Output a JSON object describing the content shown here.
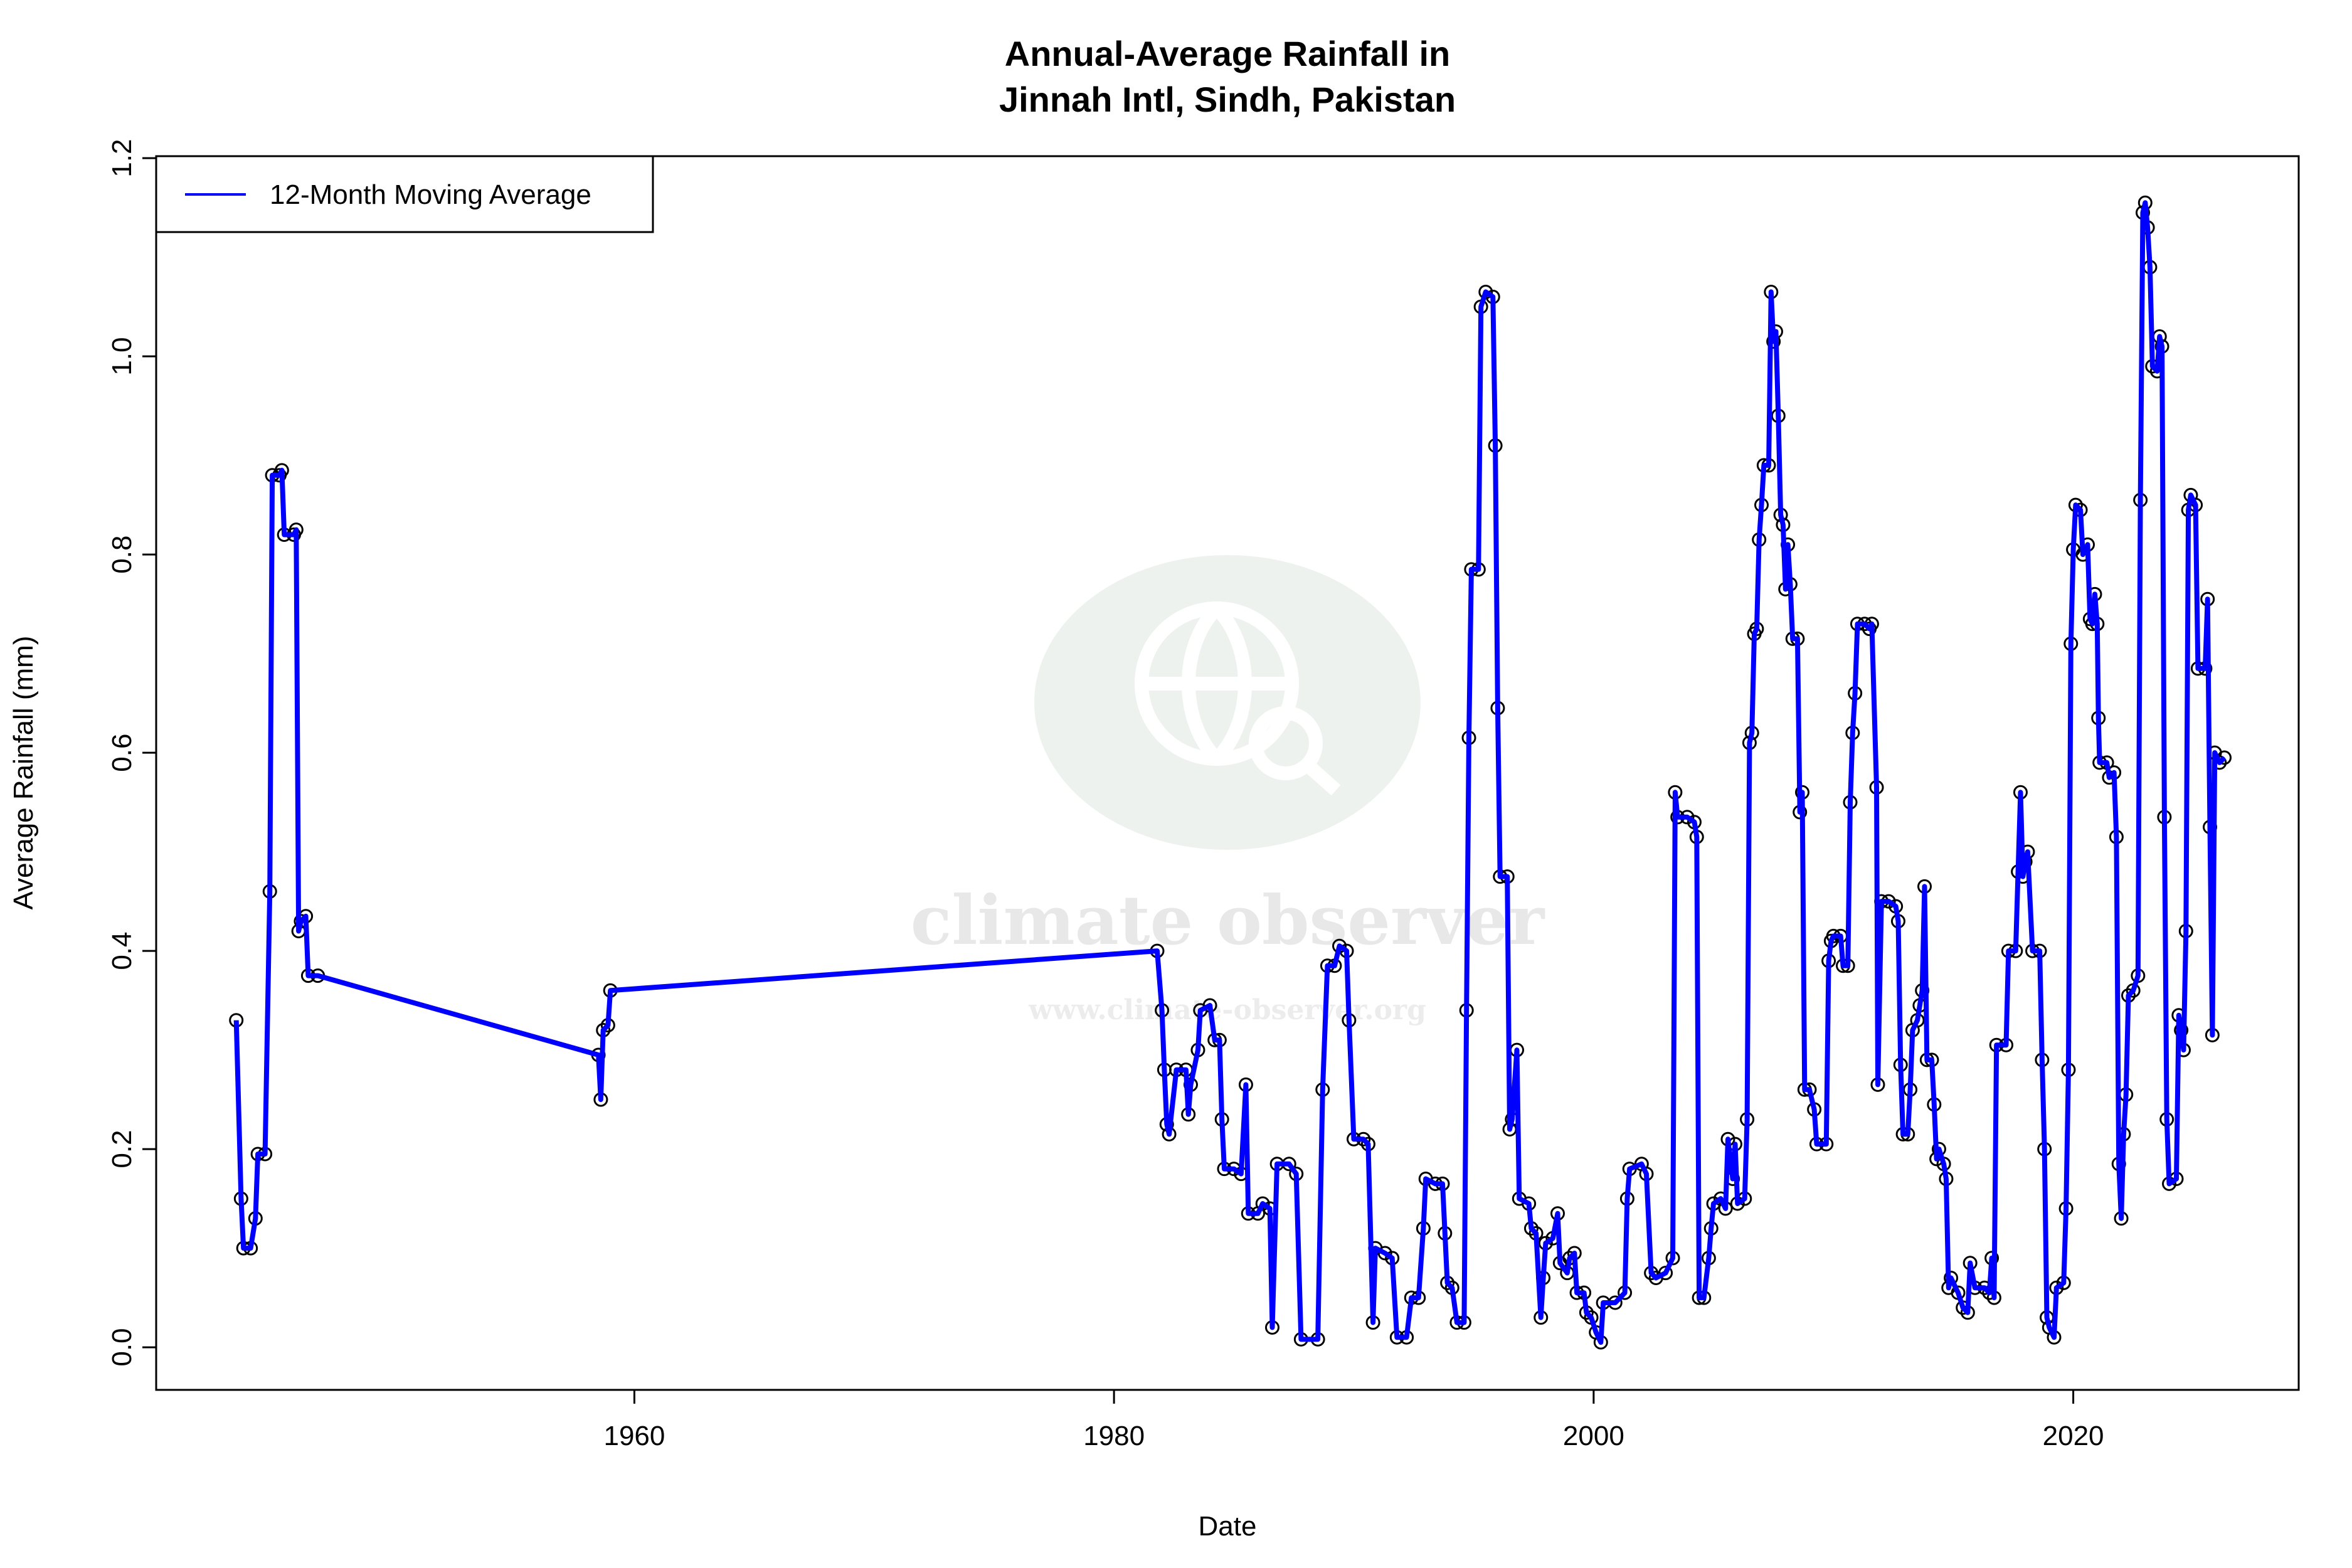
{
  "chart_data": {
    "type": "line",
    "title_line1": "Annual-Average Rainfall in",
    "title_line2": "Jinnah Intl, Sindh, Pakistan",
    "xlabel": "Date",
    "ylabel": "Average Rainfall (mm)",
    "xlim": [
      1940.06,
      2029.4
    ],
    "ylim": [
      -0.043,
      1.202
    ],
    "x_ticks": [
      1960,
      1980,
      2000,
      2020
    ],
    "x_tick_labels": [
      "1960",
      "1980",
      "2000",
      "2020"
    ],
    "y_ticks": [
      0,
      0.2,
      0.4,
      0.6,
      0.8,
      1.0,
      1.2
    ],
    "y_tick_labels": [
      "0.0",
      "0.2",
      "0.4",
      "0.6",
      "0.8",
      "1.0",
      "1.2"
    ],
    "grid": false,
    "legend": {
      "placement": "top-left",
      "entries": [
        "12-Month Moving Average"
      ]
    },
    "colors": {
      "line": "#0000ff",
      "points": "#000000",
      "watermark": "#eef2ee"
    },
    "watermark": {
      "name": "climate observer",
      "url": "www.climate-observer.org"
    },
    "series": [
      {
        "name": "12-Month Moving Average",
        "x": [
          1943.4,
          1943.6,
          1943.7,
          1944.0,
          1944.2,
          1944.3,
          1944.6,
          1944.8,
          1944.9,
          1945.2,
          1945.3,
          1945.4,
          1945.8,
          1945.9,
          1946.0,
          1946.1,
          1946.3,
          1946.4,
          1946.8,
          1958.5,
          1958.6,
          1958.7,
          1958.9,
          1959.0,
          1981.8,
          1982.0,
          1982.1,
          1982.2,
          1982.3,
          1982.6,
          1983.0,
          1983.1,
          1983.2,
          1983.5,
          1983.6,
          1984.0,
          1984.2,
          1984.4,
          1984.5,
          1984.6,
          1985.0,
          1985.3,
          1985.5,
          1985.6,
          1986.0,
          1986.2,
          1986.5,
          1986.6,
          1986.8,
          1987.3,
          1987.6,
          1987.8,
          1988.5,
          1988.7,
          1988.9,
          1989.2,
          1989.4,
          1989.7,
          1989.8,
          1990.0,
          1990.4,
          1990.6,
          1990.8,
          1990.9,
          1991.3,
          1991.6,
          1991.8,
          1992.2,
          1992.4,
          1992.7,
          1992.9,
          1993.0,
          1993.4,
          1993.7,
          1993.8,
          1993.9,
          1994.1,
          1994.3,
          1994.6,
          1994.7,
          1994.8,
          1994.9,
          1995.2,
          1995.3,
          1995.5,
          1995.8,
          1995.9,
          1996.0,
          1996.1,
          1996.4,
          1996.5,
          1996.6,
          1996.8,
          1996.9,
          1997.3,
          1997.4,
          1997.6,
          1997.8,
          1997.9,
          1998.0,
          1998.3,
          1998.5,
          1998.6,
          1998.9,
          1999.0,
          1999.2,
          1999.3,
          1999.6,
          1999.7,
          1999.9,
          2000.1,
          2000.3,
          2000.4,
          2000.9,
          2001.3,
          2001.4,
          2001.5,
          2002.0,
          2002.2,
          2002.4,
          2002.6,
          2003.0,
          2003.3,
          2003.4,
          2003.5,
          2003.9,
          2004.2,
          2004.3,
          2004.4,
          2004.6,
          2004.8,
          2004.9,
          2005.0,
          2005.3,
          2005.5,
          2005.6,
          2005.8,
          2005.9,
          2006.0,
          2006.3,
          2006.4,
          2006.5,
          2006.6,
          2006.7,
          2006.8,
          2006.9,
          2007.0,
          2007.1,
          2007.3,
          2007.4,
          2007.5,
          2007.6,
          2007.7,
          2007.8,
          2007.9,
          2008.0,
          2008.1,
          2008.2,
          2008.3,
          2008.5,
          2008.6,
          2008.7,
          2008.8,
          2009.0,
          2009.2,
          2009.3,
          2009.7,
          2009.8,
          2009.9,
          2010.0,
          2010.3,
          2010.4,
          2010.6,
          2010.7,
          2010.8,
          2010.9,
          2011.0,
          2011.3,
          2011.5,
          2011.6,
          2011.8,
          2011.85,
          2012.0,
          2012.3,
          2012.6,
          2012.7,
          2012.8,
          2012.9,
          2013.1,
          2013.2,
          2013.3,
          2013.5,
          2013.6,
          2013.7,
          2013.8,
          2013.9,
          2014.1,
          2014.2,
          2014.3,
          2014.4,
          2014.6,
          2014.7,
          2014.8,
          2014.9,
          2015.2,
          2015.4,
          2015.6,
          2015.7,
          2015.9,
          2016.3,
          2016.5,
          2016.6,
          2016.7,
          2016.8,
          2017.2,
          2017.3,
          2017.6,
          2017.7,
          2017.8,
          2017.9,
          2018.0,
          2018.1,
          2018.3,
          2018.6,
          2018.7,
          2018.8,
          2018.9,
          2019.0,
          2019.2,
          2019.3,
          2019.6,
          2019.7,
          2019.8,
          2019.9,
          2020.0,
          2020.1,
          2020.3,
          2020.4,
          2020.6,
          2020.7,
          2020.8,
          2020.9,
          2021.0,
          2021.05,
          2021.1,
          2021.4,
          2021.5,
          2021.7,
          2021.8,
          2021.9,
          2022.0,
          2022.1,
          2022.2,
          2022.3,
          2022.5,
          2022.7,
          2022.8,
          2022.9,
          2023.0,
          2023.1,
          2023.2,
          2023.3,
          2023.5,
          2023.6,
          2023.7,
          2023.8,
          2023.9,
          2024.0,
          2024.3,
          2024.4,
          2024.5,
          2024.6,
          2024.7,
          2024.8,
          2024.9,
          2025.1,
          2025.2,
          2025.5,
          2025.6,
          2025.7,
          2025.8,
          2025.9,
          2026.1,
          2026.3
        ],
        "y": [
          0.33,
          0.15,
          0.1,
          0.1,
          0.13,
          0.195,
          0.195,
          0.46,
          0.88,
          0.88,
          0.885,
          0.82,
          0.82,
          0.825,
          0.42,
          0.43,
          0.435,
          0.375,
          0.375,
          0.295,
          0.25,
          0.32,
          0.325,
          0.36,
          0.4,
          0.34,
          0.28,
          0.225,
          0.215,
          0.28,
          0.28,
          0.235,
          0.265,
          0.3,
          0.34,
          0.345,
          0.31,
          0.31,
          0.23,
          0.18,
          0.18,
          0.175,
          0.265,
          0.135,
          0.135,
          0.145,
          0.14,
          0.02,
          0.185,
          0.185,
          0.175,
          0.008,
          0.008,
          0.26,
          0.385,
          0.385,
          0.405,
          0.4,
          0.33,
          0.21,
          0.21,
          0.205,
          0.025,
          0.1,
          0.095,
          0.09,
          0.01,
          0.01,
          0.05,
          0.05,
          0.12,
          0.17,
          0.165,
          0.165,
          0.115,
          0.065,
          0.06,
          0.025,
          0.025,
          0.34,
          0.615,
          0.785,
          0.785,
          1.05,
          1.065,
          1.06,
          0.91,
          0.645,
          0.475,
          0.475,
          0.22,
          0.23,
          0.3,
          0.15,
          0.145,
          0.12,
          0.115,
          0.03,
          0.07,
          0.105,
          0.11,
          0.135,
          0.085,
          0.075,
          0.09,
          0.095,
          0.055,
          0.055,
          0.035,
          0.03,
          0.015,
          0.005,
          0.045,
          0.045,
          0.055,
          0.15,
          0.18,
          0.185,
          0.175,
          0.075,
          0.07,
          0.075,
          0.09,
          0.56,
          0.535,
          0.535,
          0.53,
          0.515,
          0.05,
          0.05,
          0.09,
          0.12,
          0.145,
          0.15,
          0.14,
          0.21,
          0.17,
          0.205,
          0.145,
          0.15,
          0.23,
          0.61,
          0.62,
          0.72,
          0.725,
          0.815,
          0.85,
          0.89,
          0.89,
          1.065,
          1.015,
          1.025,
          0.94,
          0.84,
          0.83,
          0.765,
          0.81,
          0.77,
          0.715,
          0.715,
          0.54,
          0.56,
          0.26,
          0.26,
          0.24,
          0.205,
          0.205,
          0.39,
          0.41,
          0.415,
          0.415,
          0.385,
          0.385,
          0.55,
          0.62,
          0.66,
          0.73,
          0.73,
          0.725,
          0.73,
          0.565,
          0.265,
          0.45,
          0.45,
          0.445,
          0.43,
          0.285,
          0.215,
          0.215,
          0.26,
          0.32,
          0.33,
          0.345,
          0.36,
          0.465,
          0.29,
          0.29,
          0.245,
          0.19,
          0.2,
          0.185,
          0.17,
          0.06,
          0.07,
          0.055,
          0.04,
          0.035,
          0.085,
          0.06,
          0.06,
          0.055,
          0.09,
          0.05,
          0.305,
          0.305,
          0.4,
          0.4,
          0.48,
          0.56,
          0.475,
          0.49,
          0.5,
          0.4,
          0.4,
          0.29,
          0.2,
          0.03,
          0.02,
          0.01,
          0.06,
          0.065,
          0.14,
          0.28,
          0.71,
          0.805,
          0.85,
          0.845,
          0.8,
          0.81,
          0.735,
          0.73,
          0.76,
          0.73,
          0.635,
          0.59,
          0.59,
          0.575,
          0.58,
          0.515,
          0.185,
          0.13,
          0.215,
          0.255,
          0.355,
          0.36,
          0.375,
          0.855,
          1.145,
          1.155,
          1.13,
          1.09,
          0.99,
          0.985,
          1.02,
          1.01,
          0.535,
          0.23,
          0.165,
          0.17,
          0.335,
          0.32,
          0.3,
          0.42,
          0.845,
          0.86,
          0.85,
          0.685,
          0.685,
          0.755,
          0.525,
          0.315,
          0.6,
          0.59,
          0.595
        ]
      }
    ]
  }
}
